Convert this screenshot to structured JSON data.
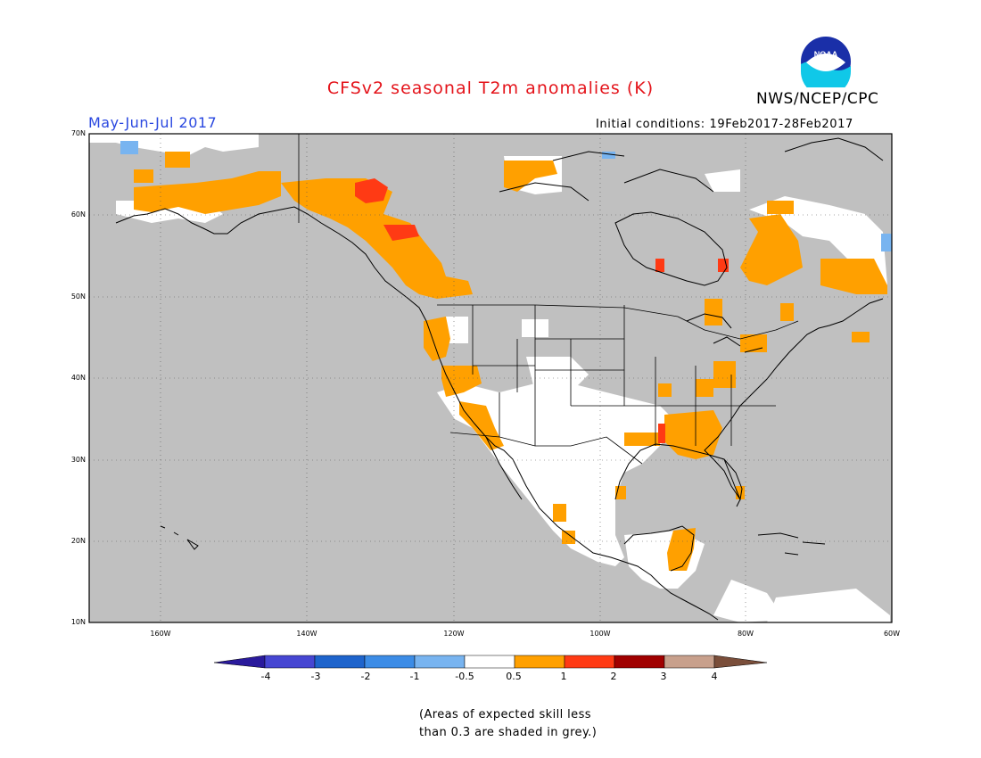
{
  "header": {
    "title": "CFSv2 seasonal T2m anomalies (K)",
    "org": "NWS/NCEP/CPC",
    "season": "May-Jun-Jul 2017",
    "initial_conditions": "Initial conditions: 19Feb2017-28Feb2017",
    "logo_text": "NOAA"
  },
  "map": {
    "lat_labels": [
      "70N",
      "60N",
      "50N",
      "40N",
      "30N",
      "20N",
      "10N"
    ],
    "lon_labels": [
      "160W",
      "140W",
      "120W",
      "100W",
      "80W",
      "60W"
    ],
    "colors": {
      "grey_low_skill": "#c0c0c0",
      "neutral": "#ffffff",
      "anom_0_5_to_1": "#ffa000",
      "anom_1_to_2": "#ff3a14",
      "anom_above_2": "#a00000",
      "anom_neg_0_5_to_neg_1": "#78b4f0"
    }
  },
  "colorbar": {
    "labels": [
      "-4",
      "-3",
      "-2",
      "-1",
      "-0.5",
      "0.5",
      "1",
      "2",
      "3",
      "4"
    ],
    "colors": [
      "#2a1a9c",
      "#4646d2",
      "#1e64cc",
      "#3c8ce6",
      "#78b4f0",
      "#ffffff",
      "#ffa000",
      "#ff3a14",
      "#a00000",
      "#c8a08c",
      "#7a4e3a"
    ]
  },
  "note": {
    "line1": "(Areas of expected skill less",
    "line2": "than 0.3 are shaded in grey.)"
  }
}
